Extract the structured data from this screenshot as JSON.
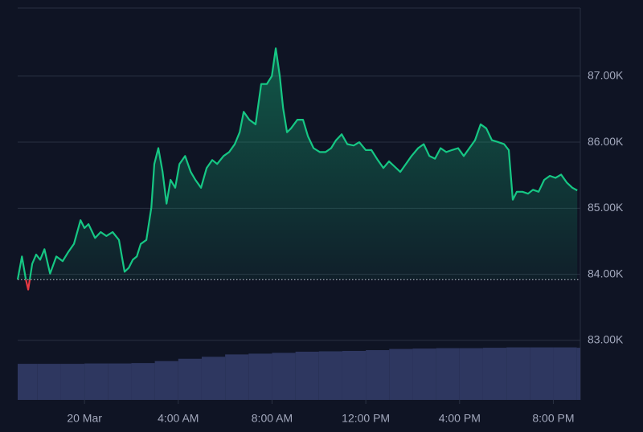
{
  "chart_data": {
    "type": "line",
    "x": [
      -2.85,
      -2.67,
      -2.5,
      -2.4,
      -2.23,
      -2.06,
      -1.89,
      -1.71,
      -1.47,
      -1.2,
      -0.93,
      -0.69,
      -0.45,
      -0.17,
      0,
      0.17,
      0.45,
      0.69,
      0.93,
      1.2,
      1.47,
      1.71,
      1.89,
      2.06,
      2.23,
      2.4,
      2.64,
      2.85,
      2.98,
      3.15,
      3.33,
      3.5,
      3.67,
      3.87,
      4.05,
      4.29,
      4.53,
      4.73,
      4.97,
      5.21,
      5.45,
      5.66,
      5.93,
      6.17,
      6.41,
      6.62,
      6.79,
      7.03,
      7.3,
      7.54,
      7.78,
      7.99,
      8.16,
      8.33,
      8.47,
      8.64,
      8.81,
      9.08,
      9.32,
      9.53,
      9.77,
      10.04,
      10.28,
      10.52,
      10.73,
      10.97,
      11.21,
      11.48,
      11.72,
      12,
      12.24,
      12.51,
      12.75,
      12.99,
      13.23,
      13.47,
      13.71,
      13.95,
      14.23,
      14.47,
      14.71,
      14.95,
      15.19,
      15.43,
      15.67,
      15.94,
      16.18,
      16.42,
      16.66,
      16.9,
      17.14,
      17.38,
      17.66,
      17.9,
      18.1,
      18.27,
      18.44,
      18.68,
      18.92,
      19.13,
      19.37,
      19.61,
      19.85,
      20.09,
      20.33,
      20.57,
      20.81,
      21.02
    ],
    "values": [
      83920,
      84270,
      83920,
      83770,
      84160,
      84300,
      84220,
      84380,
      84010,
      84270,
      84200,
      84340,
      84460,
      84820,
      84700,
      84760,
      84550,
      84640,
      84580,
      84640,
      84520,
      84040,
      84100,
      84220,
      84270,
      84460,
      84520,
      85010,
      85670,
      85910,
      85550,
      85070,
      85430,
      85310,
      85670,
      85790,
      85550,
      85430,
      85310,
      85610,
      85730,
      85670,
      85790,
      85850,
      85970,
      86150,
      86460,
      86340,
      86270,
      86880,
      86880,
      87000,
      87420,
      87000,
      86520,
      86150,
      86210,
      86340,
      86340,
      86090,
      85910,
      85850,
      85850,
      85910,
      86030,
      86120,
      85970,
      85950,
      86000,
      85880,
      85880,
      85730,
      85610,
      85710,
      85630,
      85550,
      85670,
      85790,
      85910,
      85970,
      85790,
      85750,
      85910,
      85850,
      85880,
      85910,
      85790,
      85910,
      86030,
      86270,
      86210,
      86030,
      86000,
      85970,
      85880,
      85130,
      85250,
      85250,
      85220,
      85280,
      85250,
      85430,
      85490,
      85460,
      85510,
      85390,
      85310,
      85270
    ],
    "color": "#16c784",
    "down_color": "#ea3943",
    "baseline": 83920,
    "xlim": [
      -2.85,
      21.15
    ],
    "ylim": [
      82100,
      88030
    ],
    "xticks": [
      {
        "value": 0,
        "label": "20 Mar"
      },
      {
        "value": 4,
        "label": "4:00 AM"
      },
      {
        "value": 8,
        "label": "8:00 AM"
      },
      {
        "value": 12,
        "label": "12:00 PM"
      },
      {
        "value": 16,
        "label": "4:00 PM"
      },
      {
        "value": 20,
        "label": "8:00 PM"
      }
    ],
    "yticks": [
      {
        "value": 83000,
        "label": "83.00K"
      },
      {
        "value": 84000,
        "label": "84.00K"
      },
      {
        "value": 85000,
        "label": "85.00K"
      },
      {
        "value": 86000,
        "label": "86.00K"
      },
      {
        "value": 87000,
        "label": "87.00K"
      }
    ],
    "grid": true,
    "volume": {
      "color": "#2e3760",
      "y2lim": [
        0,
        100
      ],
      "x": [
        -2.85,
        -2,
        -1,
        0,
        1,
        2,
        3,
        4,
        5,
        6,
        7,
        8,
        9,
        10,
        11,
        12,
        13,
        14,
        15,
        16,
        17,
        18,
        19,
        20,
        21
      ],
      "values": [
        9.2,
        9.2,
        9.2,
        9.3,
        9.3,
        9.4,
        9.9,
        10.5,
        11.0,
        11.6,
        11.8,
        12.0,
        12.3,
        12.4,
        12.5,
        12.7,
        13.0,
        13.1,
        13.2,
        13.2,
        13.3,
        13.4,
        13.4,
        13.4,
        13.3
      ]
    }
  }
}
